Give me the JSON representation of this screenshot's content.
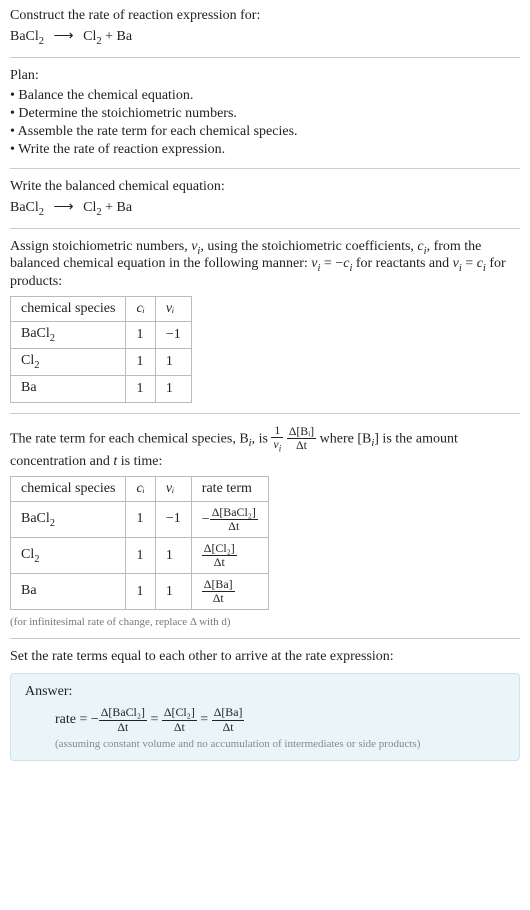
{
  "header": {
    "prompt": "Construct the rate of reaction expression for:",
    "equation_lhs": "BaCl",
    "equation_lhs_sub": "2",
    "arrow": "⟶",
    "rhs_a": "Cl",
    "rhs_a_sub": "2",
    "plus": " + ",
    "rhs_b": "Ba"
  },
  "plan": {
    "title": "Plan:",
    "items": [
      "Balance the chemical equation.",
      "Determine the stoichiometric numbers.",
      "Assemble the rate term for each chemical species.",
      "Write the rate of reaction expression."
    ]
  },
  "balanced": {
    "title": "Write the balanced chemical equation:"
  },
  "assign": {
    "text_a": "Assign stoichiometric numbers, ",
    "nu_i": "ν",
    "nu_i_sub": "i",
    "text_b": ", using the stoichiometric coefficients, ",
    "c_i": "c",
    "c_i_sub": "i",
    "text_c": ", from the balanced chemical equation in the following manner: ",
    "rel1_a": "ν",
    "rel1_b": " = −",
    "rel1_c": "c",
    "text_d": " for reactants and ",
    "rel2_a": "ν",
    "rel2_b": " = ",
    "rel2_c": "c",
    "text_e": " for products:"
  },
  "table1": {
    "headers": [
      "chemical species",
      "cᵢ",
      "νᵢ"
    ],
    "rows": [
      {
        "species": "BaCl",
        "sub": "2",
        "c": "1",
        "nu": "−1"
      },
      {
        "species": "Cl",
        "sub": "2",
        "c": "1",
        "nu": "1"
      },
      {
        "species": "Ba",
        "sub": "",
        "c": "1",
        "nu": "1"
      }
    ]
  },
  "rateterm": {
    "text_a": "The rate term for each chemical species, B",
    "sub_i": "i",
    "text_b": ", is ",
    "frac1_num": "1",
    "frac1_den_a": "ν",
    "frac1_den_sub": "i",
    "frac2_num": "Δ[Bᵢ]",
    "frac2_den": "Δt",
    "text_c": " where [B",
    "text_d": "] is the amount concentration and ",
    "t_var": "t",
    "text_e": " is time:"
  },
  "table2": {
    "headers": [
      "chemical species",
      "cᵢ",
      "νᵢ",
      "rate term"
    ],
    "rows": [
      {
        "species": "BaCl",
        "sub": "2",
        "c": "1",
        "nu": "−1",
        "rate_prefix": "−",
        "rate_num": "Δ[BaCl₂]",
        "rate_den": "Δt"
      },
      {
        "species": "Cl",
        "sub": "2",
        "c": "1",
        "nu": "1",
        "rate_prefix": "",
        "rate_num": "Δ[Cl₂]",
        "rate_den": "Δt"
      },
      {
        "species": "Ba",
        "sub": "",
        "c": "1",
        "nu": "1",
        "rate_prefix": "",
        "rate_num": "Δ[Ba]",
        "rate_den": "Δt"
      }
    ],
    "note": "(for infinitesimal rate of change, replace Δ with d)"
  },
  "setequal": {
    "text": "Set the rate terms equal to each other to arrive at the rate expression:"
  },
  "answer": {
    "label": "Answer:",
    "rate_label": "rate = −",
    "t1_num": "Δ[BaCl₂]",
    "t1_den": "Δt",
    "eq": " = ",
    "t2_num": "Δ[Cl₂]",
    "t2_den": "Δt",
    "t3_num": "Δ[Ba]",
    "t3_den": "Δt",
    "note": "(assuming constant volume and no accumulation of intermediates or side products)"
  },
  "colors": {
    "text": "#222222",
    "divider": "#cccccc",
    "table_border": "#bbbbbb",
    "note": "#777777",
    "answer_bg": "#eaf5f9",
    "answer_border": "#cfe3ea",
    "answer_note": "#888888"
  }
}
